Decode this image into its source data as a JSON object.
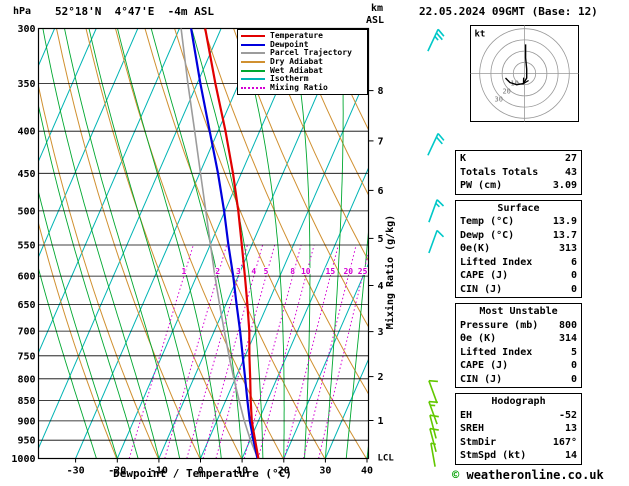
{
  "header": {
    "pressure_unit": "hPa",
    "station_title": "52°18'N  4°47'E  -4m ASL",
    "altitude_unit_line1": "km",
    "altitude_unit_line2": "ASL",
    "datetime_title": "22.05.2024 09GMT (Base: 12)"
  },
  "axes": {
    "pressure_ticks": [
      300,
      350,
      400,
      450,
      500,
      550,
      600,
      650,
      700,
      750,
      800,
      850,
      900,
      950,
      1000
    ],
    "temp_ticks": [
      -30,
      -20,
      -10,
      0,
      10,
      20,
      30,
      40
    ],
    "xlabel": "Dewpoint / Temperature (°C)",
    "mixing_ratio_axis_label": "Mixing Ratio (g/kg)",
    "right_axis": {
      "km_levels": [
        {
          "km": 1,
          "p": 899
        },
        {
          "km": 2,
          "p": 795
        },
        {
          "km": 3,
          "p": 701
        },
        {
          "km": 4,
          "p": 616
        },
        {
          "km": 5,
          "p": 540
        },
        {
          "km": 6,
          "p": 472
        },
        {
          "km": 7,
          "p": 411
        },
        {
          "km": 8,
          "p": 357
        }
      ],
      "lcl_label": "LCL",
      "lcl_p": 1000
    }
  },
  "legend": [
    {
      "label": "Temperature",
      "color": "#e10000",
      "dash": false
    },
    {
      "label": "Dewpoint",
      "color": "#0000dd",
      "dash": false
    },
    {
      "label": "Parcel Trajectory",
      "color": "#9c9c9c",
      "dash": false
    },
    {
      "label": "Dry Adiabat",
      "color": "#d09030",
      "dash": false
    },
    {
      "label": "Wet Adiabat",
      "color": "#00a830",
      "dash": false
    },
    {
      "label": "Isotherm",
      "color": "#00b4b4",
      "dash": false
    },
    {
      "label": "Mixing Ratio",
      "color": "#d400d4",
      "dash": true
    }
  ],
  "chart_data": {
    "type": "skewt-log-p-sounding",
    "pressure_range_hpa": [
      300,
      1000
    ],
    "temp_axis_range_c": [
      -40,
      40
    ],
    "isotherm_step_c": 10,
    "dry_adiabat_step_k": 10,
    "wet_adiabat_step_c": 5,
    "colors": {
      "temperature": "#e10000",
      "dewpoint": "#0000dd",
      "parcel": "#9c9c9c",
      "dry_adiabat": "#d09030",
      "wet_adiabat": "#00a830",
      "isotherm": "#00b4b4",
      "mixing_ratio": "#d400d4"
    },
    "temperature_profile": [
      [
        1000,
        13.9
      ],
      [
        950,
        11.2
      ],
      [
        925,
        9.8
      ],
      [
        900,
        8.4
      ],
      [
        850,
        6.0
      ],
      [
        800,
        3.6
      ],
      [
        750,
        1.0
      ],
      [
        700,
        -1.6
      ],
      [
        650,
        -4.8
      ],
      [
        600,
        -8.4
      ],
      [
        550,
        -12.4
      ],
      [
        500,
        -16.8
      ],
      [
        450,
        -22.0
      ],
      [
        400,
        -28.2
      ],
      [
        350,
        -35.6
      ],
      [
        300,
        -43.8
      ]
    ],
    "dewpoint_profile": [
      [
        1000,
        13.7
      ],
      [
        950,
        10.8
      ],
      [
        925,
        9.4
      ],
      [
        900,
        7.9
      ],
      [
        850,
        5.2
      ],
      [
        800,
        2.4
      ],
      [
        750,
        -0.6
      ],
      [
        700,
        -3.8
      ],
      [
        650,
        -7.4
      ],
      [
        600,
        -11.2
      ],
      [
        550,
        -15.6
      ],
      [
        500,
        -20.2
      ],
      [
        450,
        -25.6
      ],
      [
        400,
        -32.0
      ],
      [
        350,
        -39.2
      ],
      [
        300,
        -47.2
      ]
    ],
    "parcel_profile": [
      [
        1000,
        13.8
      ],
      [
        950,
        10.1
      ],
      [
        900,
        6.6
      ],
      [
        850,
        3.2
      ],
      [
        800,
        -0.3
      ],
      [
        750,
        -3.9
      ],
      [
        700,
        -7.6
      ],
      [
        650,
        -11.5
      ],
      [
        600,
        -15.6
      ],
      [
        550,
        -19.9
      ],
      [
        500,
        -24.6
      ],
      [
        450,
        -29.8
      ],
      [
        400,
        -35.6
      ],
      [
        350,
        -42.2
      ],
      [
        300,
        -49.6
      ]
    ],
    "mixing_ratio_lines_gkg": [
      1,
      2,
      3,
      4,
      5,
      8,
      10,
      15,
      20,
      25
    ],
    "wind_barbs": [
      {
        "p": 310,
        "speed_kt": 25,
        "dir_deg": 25,
        "color": "#00c8c8"
      },
      {
        "p": 415,
        "speed_kt": 20,
        "dir_deg": 25,
        "color": "#00c8c8"
      },
      {
        "p": 500,
        "speed_kt": 15,
        "dir_deg": 20,
        "color": "#00c8c8"
      },
      {
        "p": 545,
        "speed_kt": 10,
        "dir_deg": 20,
        "color": "#00c8c8"
      },
      {
        "p": 830,
        "speed_kt": 10,
        "dir_deg": 340,
        "color": "#62c800"
      },
      {
        "p": 880,
        "speed_kt": 15,
        "dir_deg": 340,
        "color": "#62c800"
      },
      {
        "p": 915,
        "speed_kt": 10,
        "dir_deg": 345,
        "color": "#62c800"
      },
      {
        "p": 950,
        "speed_kt": 10,
        "dir_deg": 345,
        "color": "#62c800"
      },
      {
        "p": 990,
        "speed_kt": 5,
        "dir_deg": 350,
        "color": "#62c800"
      }
    ],
    "hodograph": {
      "unit_label": "kt",
      "rings_kt": [
        10,
        20,
        30,
        40
      ],
      "ring_labels": [
        10,
        20,
        30
      ],
      "trace_uv_kt": [
        [
          1,
          26
        ],
        [
          1,
          14
        ],
        [
          2,
          4
        ],
        [
          2,
          -4
        ],
        [
          -1,
          -9
        ],
        [
          -7,
          -10
        ],
        [
          -13,
          -8
        ],
        [
          -17,
          -4
        ]
      ]
    }
  },
  "tables": [
    {
      "header": null,
      "rows": [
        [
          "K",
          "27"
        ],
        [
          "Totals Totals",
          "43"
        ],
        [
          "PW (cm)",
          "3.09"
        ]
      ]
    },
    {
      "header": "Surface",
      "rows": [
        [
          "Temp (°C)",
          "13.9"
        ],
        [
          "Dewp (°C)",
          "13.7"
        ],
        [
          "θe(K)",
          "313"
        ],
        [
          "Lifted Index",
          "6"
        ],
        [
          "CAPE (J)",
          "0"
        ],
        [
          "CIN (J)",
          "0"
        ]
      ]
    },
    {
      "header": "Most Unstable",
      "rows": [
        [
          "Pressure (mb)",
          "800"
        ],
        [
          "θe (K)",
          "314"
        ],
        [
          "Lifted Index",
          "5"
        ],
        [
          "CAPE (J)",
          "0"
        ],
        [
          "CIN (J)",
          "0"
        ]
      ]
    },
    {
      "header": "Hodograph",
      "rows": [
        [
          "EH",
          "-52"
        ],
        [
          "SREH",
          "13"
        ],
        [
          "StmDir",
          "167°"
        ],
        [
          "StmSpd (kt)",
          "14"
        ]
      ]
    }
  ],
  "copyright": {
    "symbol": "©",
    "text": "weatheronline.co.uk"
  }
}
